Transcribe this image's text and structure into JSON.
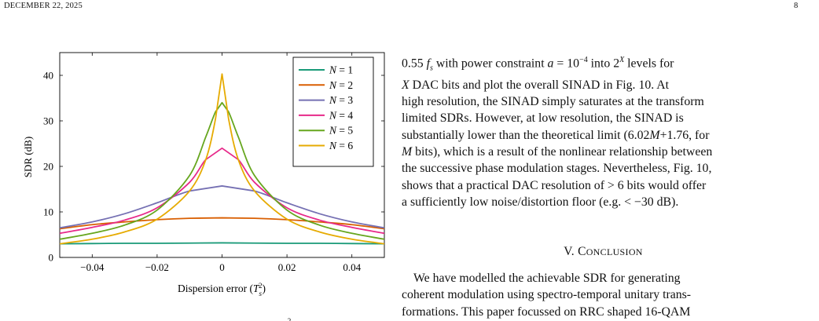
{
  "header": {
    "date": "DECEMBER 22, 2025",
    "page_number": "8"
  },
  "chart_data": {
    "type": "line",
    "title": "",
    "xlabel": "Dispersion error (T_s^2)",
    "ylabel": "SDR (dB)",
    "xlim": [
      -0.05,
      0.05
    ],
    "ylim": [
      0,
      45
    ],
    "xticks": [
      -0.04,
      -0.02,
      0,
      0.02,
      0.04
    ],
    "xtick_labels": [
      "−0.04",
      "−0.02",
      "0",
      "0.02",
      "0.04"
    ],
    "yticks": [
      0,
      10,
      20,
      30,
      40
    ],
    "ytick_labels": [
      "0",
      "10",
      "20",
      "30",
      "40"
    ],
    "grid": false,
    "legend_position": "top-right",
    "series": [
      {
        "name": "N = 1",
        "color": "#199a78",
        "x": [
          -0.05,
          -0.04,
          -0.03,
          -0.02,
          -0.01,
          0,
          0.01,
          0.02,
          0.03,
          0.04,
          0.05
        ],
        "y": [
          3.0,
          3.05,
          3.1,
          3.1,
          3.15,
          3.2,
          3.15,
          3.1,
          3.1,
          3.05,
          3.0
        ]
      },
      {
        "name": "N = 2",
        "color": "#d95f02",
        "x": [
          -0.05,
          -0.04,
          -0.03,
          -0.02,
          -0.01,
          0,
          0.01,
          0.02,
          0.03,
          0.04,
          0.05
        ],
        "y": [
          6.3,
          7.2,
          7.8,
          8.3,
          8.6,
          8.7,
          8.6,
          8.3,
          7.8,
          7.2,
          6.3
        ]
      },
      {
        "name": "N = 3",
        "color": "#7570b3",
        "x": [
          -0.05,
          -0.04,
          -0.03,
          -0.02,
          -0.01,
          0,
          0.01,
          0.02,
          0.03,
          0.04,
          0.05
        ],
        "y": [
          6.5,
          7.8,
          9.6,
          12.0,
          14.6,
          15.7,
          14.6,
          12.0,
          9.6,
          7.8,
          6.5
        ]
      },
      {
        "name": "N = 4",
        "color": "#e7298a",
        "x": [
          -0.05,
          -0.04,
          -0.03,
          -0.02,
          -0.01,
          -0.005,
          0,
          0.005,
          0.01,
          0.02,
          0.03,
          0.04,
          0.05
        ],
        "y": [
          5.3,
          6.6,
          8.2,
          10.9,
          16.5,
          21.5,
          24.0,
          21.5,
          16.5,
          10.9,
          8.2,
          6.6,
          5.3
        ]
      },
      {
        "name": "N = 5",
        "color": "#66a61e",
        "x": [
          -0.05,
          -0.04,
          -0.03,
          -0.02,
          -0.01,
          -0.005,
          -0.002,
          0,
          0.002,
          0.005,
          0.01,
          0.02,
          0.03,
          0.04,
          0.05
        ],
        "y": [
          4.0,
          5.3,
          7.1,
          10.4,
          18.0,
          26.5,
          32.0,
          34.0,
          32.0,
          26.5,
          18.0,
          10.4,
          7.1,
          5.3,
          4.0
        ]
      },
      {
        "name": "N = 6",
        "color": "#e6ab02",
        "x": [
          -0.05,
          -0.04,
          -0.03,
          -0.02,
          -0.01,
          -0.005,
          -0.002,
          0,
          0.002,
          0.005,
          0.01,
          0.02,
          0.03,
          0.04,
          0.05
        ],
        "y": [
          3.0,
          4.0,
          5.6,
          8.4,
          14.6,
          21.5,
          30.5,
          40.3,
          30.5,
          21.5,
          14.6,
          8.4,
          5.6,
          4.0,
          3.0
        ]
      }
    ]
  },
  "text": {
    "p1_l1_a": "0.55 ",
    "p1_l1_b": " with power constraint ",
    "p1_l1_c": " into ",
    "p1_l1_d": " levels for",
    "p1_l2_a": " DAC bits and plot the overall SINAD in Fig. 10. At",
    "p1_l3": "high resolution, the SINAD simply saturates at the transform",
    "p1_l4": "limited SDRs. However, at low resolution, the SINAD is",
    "p1_l5_a": "substantially lower than the theoretical limit (6.02",
    "p1_l5_b": "+1.76, for",
    "p1_l6_a": " bits), which is a result of the nonlinear relationship between",
    "p1_l7": "the successive phase modulation stages. Nevertheless, Fig. 10,",
    "p1_l8_a": "shows that a practical DAC resolution of > 6 bits would offer",
    "p1_l9": "a sufficiently low noise/distortion floor (e.g. < −30 dB).",
    "section_num": "V. C",
    "section_rest": "ONCLUSION",
    "p2_l1": "We have modelled the achievable SDR for generating",
    "p2_l2": "coherent modulation using spectro-temporal unitary trans-",
    "p2_l3": "formations. This paper focussed on RRC shaped 16-QAM"
  }
}
